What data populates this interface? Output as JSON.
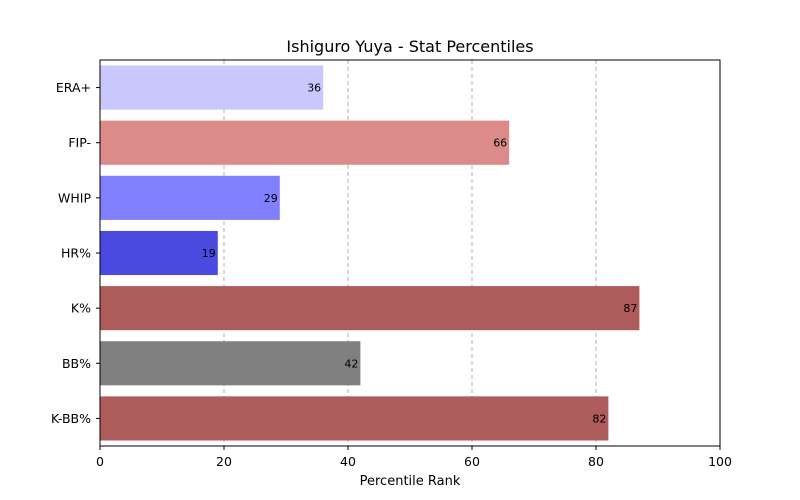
{
  "chart_data": {
    "type": "bar",
    "orientation": "horizontal",
    "title": "Ishiguro Yuya - Stat Percentiles",
    "xlabel": "Percentile Rank",
    "ylabel": "",
    "xlim": [
      0,
      100
    ],
    "xticks": [
      0,
      20,
      40,
      60,
      80,
      100
    ],
    "grid": "x-dashed",
    "categories": [
      "ERA+",
      "FIP-",
      "WHIP",
      "HR%",
      "K%",
      "BB%",
      "K-BB%"
    ],
    "values": [
      36,
      66,
      29,
      19,
      87,
      42,
      82
    ],
    "colors": [
      "#c8c8ff",
      "#dc8a8a",
      "#8080ff",
      "#4a4ae0",
      "#ad5b5b",
      "#808080",
      "#ad5b5b"
    ]
  }
}
